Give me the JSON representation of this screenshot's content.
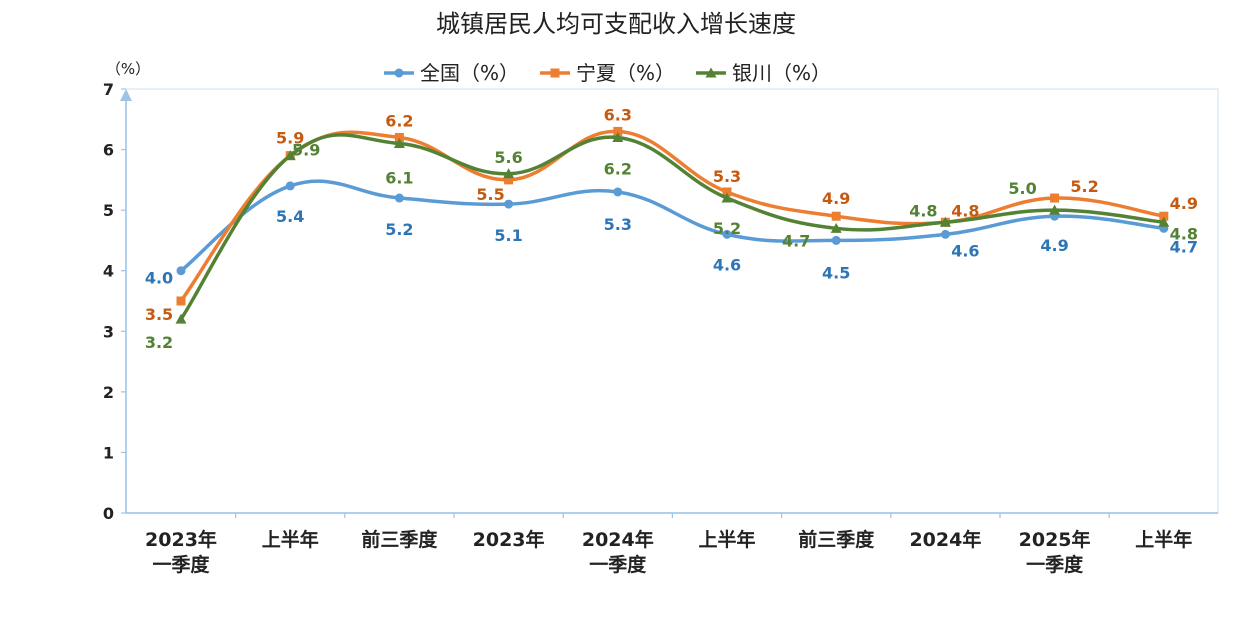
{
  "chart_data": {
    "type": "line",
    "title": "城镇居民人均可支配收入增长速度",
    "ylabel": "（%）",
    "ylim": [
      0,
      7
    ],
    "yticks": [
      "0",
      "1",
      "2",
      "3",
      "4",
      "5",
      "6",
      "7"
    ],
    "grid": false,
    "legend_position": "top",
    "categories": [
      [
        "2023年",
        "一季度"
      ],
      [
        "上半年"
      ],
      [
        "前三季度"
      ],
      [
        "2023年"
      ],
      [
        "2024年",
        "一季度"
      ],
      [
        "上半年"
      ],
      [
        "前三季度"
      ],
      [
        "2024年"
      ],
      [
        "2025年",
        "一季度"
      ],
      [
        "上半年"
      ]
    ],
    "series": [
      {
        "name": "全国（%）",
        "color": "#5B9BD5",
        "label_color": "#2E75B6",
        "marker": "circle",
        "values": [
          4.0,
          5.4,
          5.2,
          5.1,
          5.3,
          4.6,
          4.5,
          4.6,
          4.9,
          4.7
        ],
        "labels": [
          "4.0",
          "5.4",
          "5.2",
          "5.1",
          "5.3",
          "4.6",
          "4.5",
          "4.6",
          "4.9",
          "4.7"
        ]
      },
      {
        "name": "宁夏（%）",
        "color": "#ED7D31",
        "label_color": "#C55A11",
        "marker": "square",
        "values": [
          3.5,
          5.9,
          6.2,
          5.5,
          6.3,
          5.3,
          4.9,
          4.8,
          5.2,
          4.9
        ],
        "labels": [
          "3.5",
          "5.9",
          "6.2",
          "5.5",
          "6.3",
          "5.3",
          "4.9",
          "4.8",
          "5.2",
          "4.9"
        ]
      },
      {
        "name": "银川（%）",
        "color": "#548235",
        "label_color": "#548235",
        "marker": "triangle",
        "values": [
          3.2,
          5.9,
          6.1,
          5.6,
          6.2,
          5.2,
          4.7,
          4.8,
          5.0,
          4.8
        ],
        "labels": [
          "3.2",
          "5.9",
          "6.1",
          "5.6",
          "6.2",
          "5.2",
          "4.7",
          "4.8",
          "5.0",
          "4.8"
        ]
      }
    ]
  }
}
